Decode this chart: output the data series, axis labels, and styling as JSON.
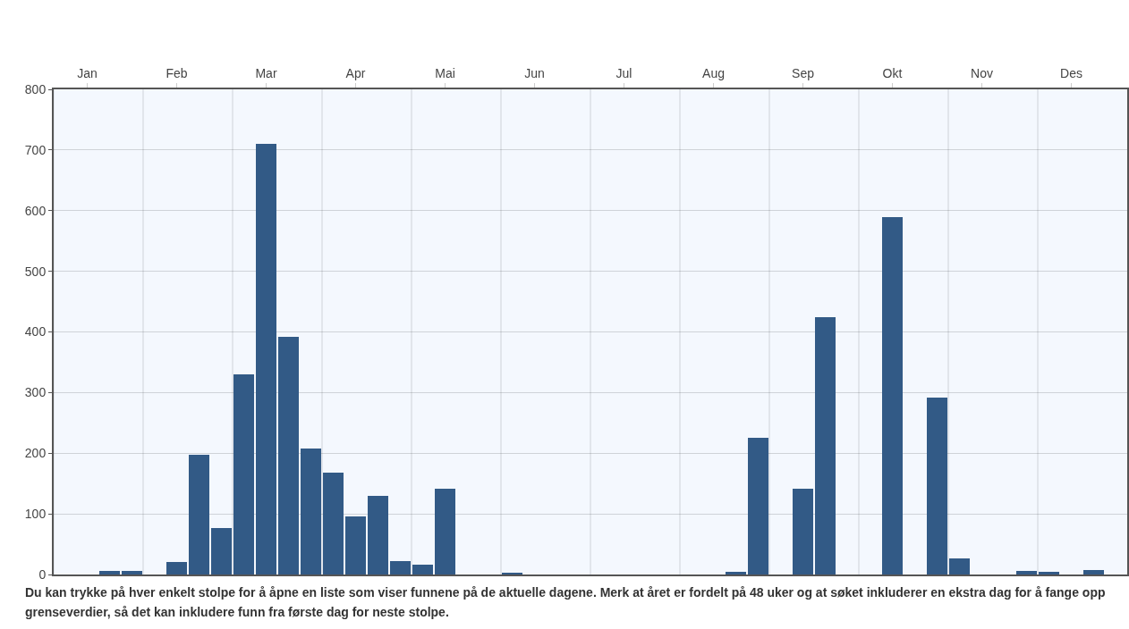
{
  "chart_data": {
    "type": "bar",
    "categories": [
      null,
      "Jan",
      null,
      null,
      null,
      "Feb",
      null,
      null,
      null,
      "Mar",
      null,
      null,
      null,
      "Apr",
      null,
      null,
      null,
      "Mai",
      null,
      null,
      null,
      "Jun",
      null,
      null,
      null,
      "Jul",
      null,
      null,
      null,
      "Aug",
      null,
      null,
      null,
      "Sep",
      null,
      null,
      null,
      "Okt",
      null,
      null,
      null,
      "Nov",
      null,
      null,
      null,
      "Des",
      null,
      null
    ],
    "values": [
      0,
      0,
      6,
      6,
      0,
      21,
      198,
      77,
      330,
      710,
      392,
      208,
      168,
      96,
      130,
      22,
      16,
      141,
      0,
      0,
      2,
      0,
      0,
      0,
      0,
      0,
      0,
      0,
      0,
      0,
      4,
      226,
      0,
      142,
      424,
      0,
      0,
      590,
      0,
      292,
      26,
      0,
      0,
      6,
      4,
      0,
      8,
      0
    ],
    "color": "#325a86",
    "ylim": [
      0,
      800
    ],
    "yticks": [
      0,
      100,
      200,
      300,
      400,
      500,
      600,
      700,
      800
    ],
    "grid": true,
    "annotations": [
      "Du kan trykke på hver enkelt stolpe for å åpne en liste som viser funnene på de aktuelle dagene. Merk at året er fordelt på 48 uker og at søket inkluderer en ekstra dag for å fange opp grenseverdier, så det kan inkludere funn fra første dag for neste stolpe."
    ]
  }
}
